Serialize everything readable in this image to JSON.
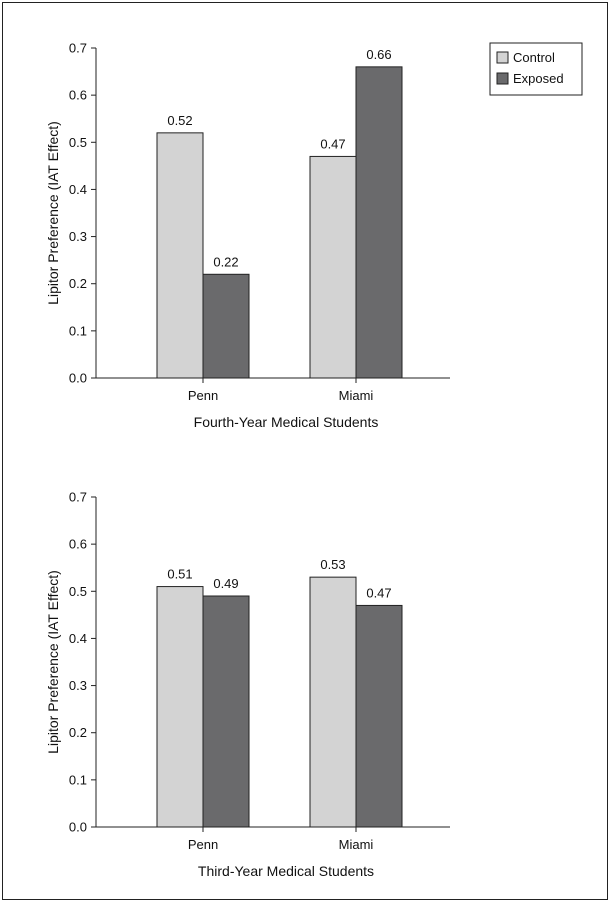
{
  "colors": {
    "control": "#d3d3d3",
    "exposed": "#6a6a6c",
    "stroke": "#222222"
  },
  "chart_data": [
    {
      "type": "bar",
      "title": "",
      "xlabel": "Fourth-Year Medical Students",
      "ylabel": "Lipitor Preference (IAT Effect)",
      "ylim": [
        0,
        0.7
      ],
      "yticks": [
        "0.0",
        "0.1",
        "0.2",
        "0.3",
        "0.4",
        "0.5",
        "0.6",
        "0.7"
      ],
      "categories": [
        "Penn",
        "Miami"
      ],
      "series": [
        {
          "name": "Control",
          "values": [
            0.52,
            0.47
          ],
          "labels": [
            "0.52",
            "0.47"
          ]
        },
        {
          "name": "Exposed",
          "values": [
            0.22,
            0.66
          ],
          "labels": [
            "0.22",
            "0.66"
          ]
        }
      ],
      "legend": {
        "position": "top-right",
        "entries": [
          "Control",
          "Exposed"
        ]
      }
    },
    {
      "type": "bar",
      "title": "",
      "xlabel": "Third-Year Medical Students",
      "ylabel": "Lipitor Preference (IAT Effect)",
      "ylim": [
        0,
        0.7
      ],
      "yticks": [
        "0.0",
        "0.1",
        "0.2",
        "0.3",
        "0.4",
        "0.5",
        "0.6",
        "0.7"
      ],
      "categories": [
        "Penn",
        "Miami"
      ],
      "series": [
        {
          "name": "Control",
          "values": [
            0.51,
            0.53
          ],
          "labels": [
            "0.51",
            "0.53"
          ]
        },
        {
          "name": "Exposed",
          "values": [
            0.49,
            0.47
          ],
          "labels": [
            "0.49",
            "0.47"
          ]
        }
      ]
    }
  ]
}
